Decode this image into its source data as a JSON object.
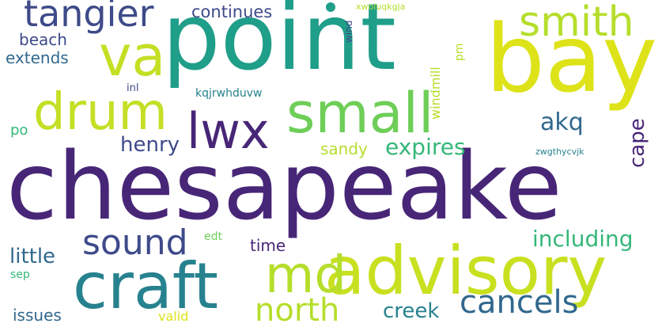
{
  "wordcloud": {
    "palette": {
      "dark_purple": "#482677",
      "indigo": "#3e4a89",
      "slate_blue": "#31688e",
      "teal_blue": "#26828e",
      "teal": "#1f9e89",
      "sea_green": "#35b779",
      "green": "#6ece58",
      "yellow_green": "#b5de2b",
      "yellow": "#dde318",
      "bg": "#ffffff"
    },
    "words": [
      {
        "text": "chesapeake",
        "weight": 1.0
      },
      {
        "text": "point",
        "weight": 0.9
      },
      {
        "text": "bay",
        "weight": 0.82
      },
      {
        "text": "advisory",
        "weight": 0.72
      },
      {
        "text": "craft",
        "weight": 0.7
      },
      {
        "text": "small",
        "weight": 0.6
      },
      {
        "text": "va",
        "weight": 0.58
      },
      {
        "text": "lwx",
        "weight": 0.55
      },
      {
        "text": "drum",
        "weight": 0.55
      },
      {
        "text": "md",
        "weight": 0.54
      },
      {
        "text": "smith",
        "weight": 0.45
      },
      {
        "text": "tangier",
        "weight": 0.4
      },
      {
        "text": "sound",
        "weight": 0.38
      },
      {
        "text": "north",
        "weight": 0.36
      },
      {
        "text": "cancels",
        "weight": 0.36
      },
      {
        "text": "expires",
        "weight": 0.28
      },
      {
        "text": "akq",
        "weight": 0.28
      },
      {
        "text": "including",
        "weight": 0.26
      },
      {
        "text": "henry",
        "weight": 0.24
      },
      {
        "text": "creek",
        "weight": 0.24
      },
      {
        "text": "little",
        "weight": 0.24
      },
      {
        "text": "cape",
        "weight": 0.22
      },
      {
        "text": "continues",
        "weight": 0.2
      },
      {
        "text": "beach",
        "weight": 0.2
      },
      {
        "text": "extends",
        "weight": 0.2
      },
      {
        "text": "time",
        "weight": 0.18
      },
      {
        "text": "issues",
        "weight": 0.18
      },
      {
        "text": "sandy",
        "weight": 0.18
      },
      {
        "text": "windmill",
        "weight": 0.14
      },
      {
        "text": "po",
        "weight": 0.16
      },
      {
        "text": "valid",
        "weight": 0.14
      },
      {
        "text": "kqjrwhduvw",
        "weight": 0.12
      },
      {
        "text": "edt",
        "weight": 0.12
      },
      {
        "text": "sep",
        "weight": 0.12
      },
      {
        "text": "pm",
        "weight": 0.12
      },
      {
        "text": "wind",
        "weight": 0.1
      },
      {
        "text": "inl",
        "weight": 0.1
      },
      {
        "text": "zwgthycvjk",
        "weight": 0.08
      },
      {
        "text": "xwoluqkgja",
        "weight": 0.08
      }
    ]
  }
}
